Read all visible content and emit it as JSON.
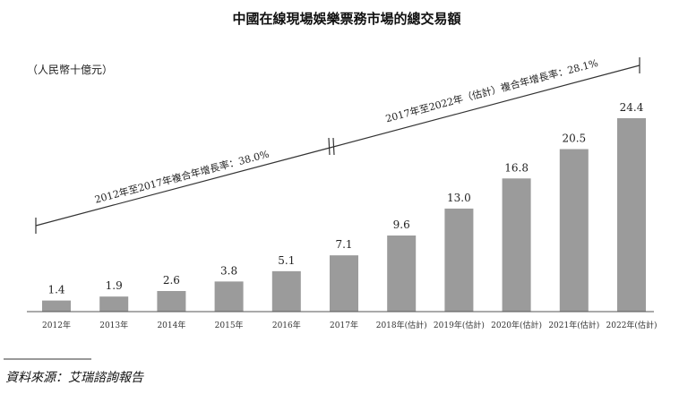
{
  "chart_data": {
    "type": "bar",
    "title": "中國在線現場娛樂票務市場的總交易額",
    "unit_label": "（人民幣十億元）",
    "categories": [
      "2012年",
      "2013年",
      "2014年",
      "2015年",
      "2016年",
      "2017年",
      "2018年(估計)",
      "2019年(估計)",
      "2020年(估計)",
      "2021年(估計)",
      "2022年(估計)"
    ],
    "values": [
      1.4,
      1.9,
      2.6,
      3.8,
      5.1,
      7.1,
      9.6,
      13.0,
      16.8,
      20.5,
      24.4
    ],
    "value_labels": [
      "1.4",
      "1.9",
      "2.6",
      "3.8",
      "5.1",
      "7.1",
      "9.6",
      "13.0",
      "16.8",
      "20.5",
      "24.4"
    ],
    "ylim": [
      0,
      24.4
    ],
    "bar_color": "#9b9b9b",
    "grid": false,
    "annotations": [
      {
        "label": "2012年至2017年複合年增長率：38.0%",
        "from": "2012年",
        "to": "2017年"
      },
      {
        "label": "2017年至2022年（估計）複合年增長率：28.1%",
        "from": "2017年",
        "to": "2022年(估計)"
      }
    ],
    "source": "資料來源：艾瑞諮詢報告"
  }
}
